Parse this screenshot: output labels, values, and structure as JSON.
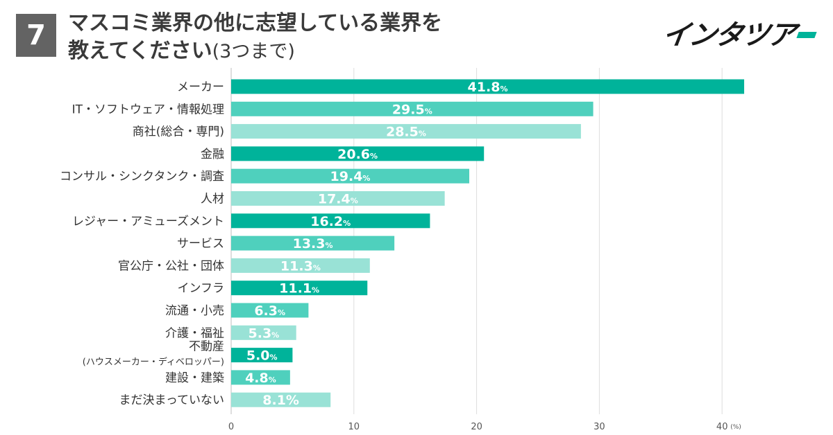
{
  "header": {
    "number": "7",
    "title_line1": "マスコミ業界の他に志望している業界を",
    "title_line2": "教えてください",
    "title_suffix": "(3つまで)"
  },
  "logo": {
    "text": "インタツア",
    "accent_color": "#00b39a"
  },
  "chart_data": {
    "type": "bar",
    "orientation": "horizontal",
    "title": "マスコミ業界の他に志望している業界を教えてください(3つまで)",
    "unit": "(%)",
    "xlim": [
      0,
      45
    ],
    "ticks": [
      0,
      10,
      20,
      30,
      40
    ],
    "tick_labels": [
      "0",
      "10",
      "20",
      "30",
      "40"
    ],
    "grid": true,
    "colors": [
      "#00b39a",
      "#4fd0bd",
      "#99e2d6"
    ],
    "categories": [
      {
        "label": "メーカー",
        "sub": "",
        "value": 41.8,
        "value_text": "41.8",
        "pct": "%"
      },
      {
        "label": "IT・ソフトウェア・情報処理",
        "sub": "",
        "value": 29.5,
        "value_text": "29.5",
        "pct": "%"
      },
      {
        "label": "商社(総合・専門)",
        "sub": "",
        "value": 28.5,
        "value_text": "28.5",
        "pct": "%"
      },
      {
        "label": "金融",
        "sub": "",
        "value": 20.6,
        "value_text": "20.6",
        "pct": "%"
      },
      {
        "label": "コンサル・シンクタンク・調査",
        "sub": "",
        "value": 19.4,
        "value_text": "19.4",
        "pct": "%"
      },
      {
        "label": "人材",
        "sub": "",
        "value": 17.4,
        "value_text": "17.4",
        "pct": "%"
      },
      {
        "label": "レジャー・アミューズメント",
        "sub": "",
        "value": 16.2,
        "value_text": "16.2",
        "pct": "%"
      },
      {
        "label": "サービス",
        "sub": "",
        "value": 13.3,
        "value_text": "13.3",
        "pct": "%"
      },
      {
        "label": "官公庁・公社・団体",
        "sub": "",
        "value": 11.3,
        "value_text": "11.3",
        "pct": "%"
      },
      {
        "label": "インフラ",
        "sub": "",
        "value": 11.1,
        "value_text": "11.1",
        "pct": "%"
      },
      {
        "label": "流通・小売",
        "sub": "",
        "value": 6.3,
        "value_text": "6.3",
        "pct": "%"
      },
      {
        "label": "介護・福祉",
        "sub": "",
        "value": 5.3,
        "value_text": "5.3",
        "pct": "%"
      },
      {
        "label": "不動産",
        "sub": "(ハウスメーカー・ディベロッパー)",
        "value": 5.0,
        "value_text": "5.0",
        "pct": "%"
      },
      {
        "label": "建設・建築",
        "sub": "",
        "value": 4.8,
        "value_text": "4.8",
        "pct": "%"
      },
      {
        "label": "まだ決まっていない",
        "sub": "",
        "value": 8.1,
        "value_text": "8.1%",
        "pct": ""
      }
    ]
  }
}
